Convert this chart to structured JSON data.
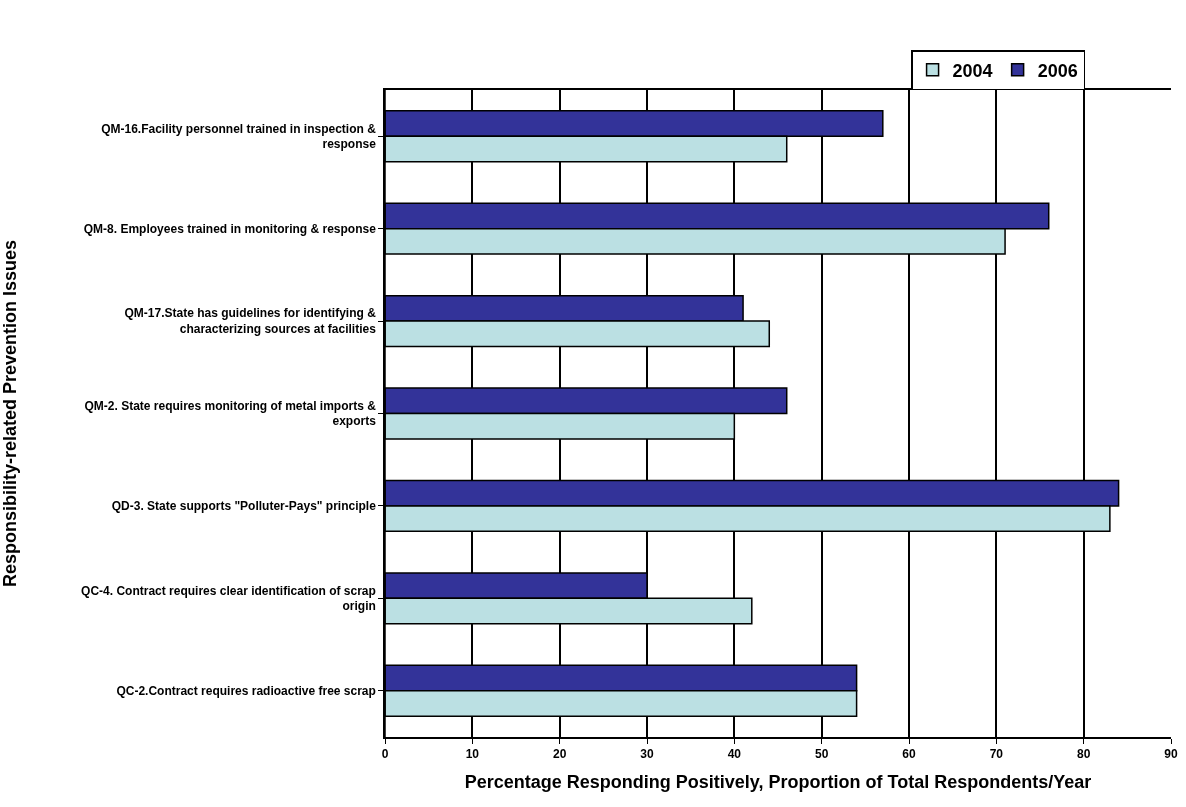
{
  "chart_data": {
    "type": "bar",
    "orientation": "horizontal",
    "xlabel": "Percentage Responding Positively, Proportion of Total Respondents/Year",
    "ylabel": "Responsibility-related Prevention Issues",
    "categories": [
      "QM-16.Facility personnel trained in inspection & response",
      "QM-8. Employees trained in monitoring & response",
      "QM-17.State has guidelines for identifying & characterizing sources at facilities",
      "QM-2. State requires monitoring of metal imports & exports",
      "QD-3. State supports \"Polluter-Pays\" principle",
      "QC-4. Contract requires clear identification of scrap origin",
      "QC-2.Contract requires radioactive free scrap"
    ],
    "series": [
      {
        "name": "2004",
        "color": "#bbe0e3",
        "values": [
          46,
          71,
          44,
          40,
          83,
          42,
          54
        ]
      },
      {
        "name": "2006",
        "color": "#333399",
        "values": [
          57,
          76,
          41,
          46,
          84,
          30,
          54
        ]
      }
    ],
    "xlim": [
      0,
      90
    ],
    "xticks": [
      0,
      10,
      20,
      30,
      40,
      50,
      60,
      70,
      80,
      90
    ],
    "grid": "x",
    "legend": "top"
  }
}
